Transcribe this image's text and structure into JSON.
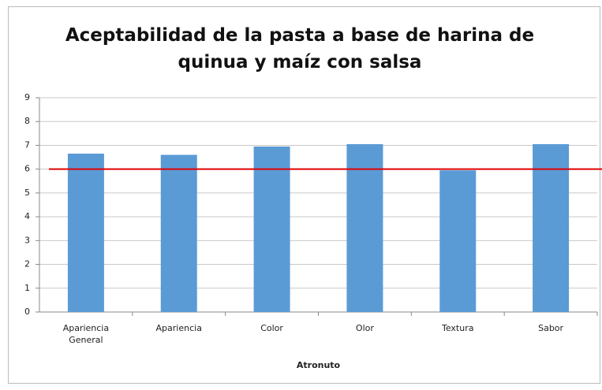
{
  "chart_data": {
    "type": "bar",
    "title": "Aceptabilidad de la pasta a base de harina de quinua y maíz con salsa",
    "x_label": "Atronuto",
    "categories": [
      "Apariencia General",
      "Apariencia",
      "Color",
      "Olor",
      "Textura",
      "Sabor"
    ],
    "values": [
      6.65,
      6.6,
      6.95,
      7.05,
      5.95,
      7.05
    ],
    "color": "#5b9bd5",
    "ylim": [
      0,
      9
    ],
    "yticks": [
      0,
      1,
      2,
      3,
      4,
      5,
      6,
      7,
      8,
      9
    ],
    "grid": true,
    "reference_line": {
      "value": 6,
      "color": "#e00000"
    }
  }
}
